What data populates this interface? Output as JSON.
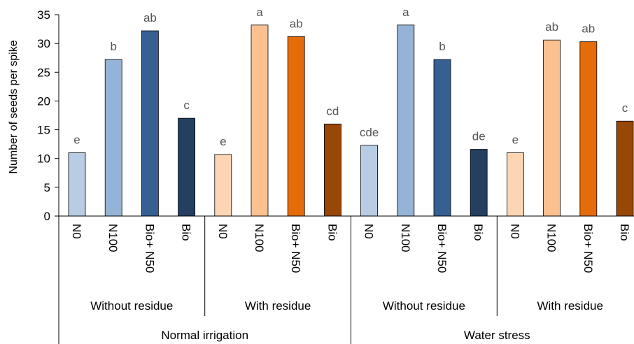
{
  "chart_data": {
    "type": "bar",
    "title": "",
    "ylabel": "Number of seeds per spike",
    "xlabel": "",
    "ylim": [
      0,
      35
    ],
    "yticks": [
      0,
      5,
      10,
      15,
      20,
      25,
      30,
      35
    ],
    "grid": false,
    "legend": "none",
    "bars": [
      {
        "label": "N0",
        "value": 11.0,
        "letter": "e",
        "color": "#b8cce4"
      },
      {
        "label": "N100",
        "value": 27.2,
        "letter": "b",
        "color": "#95b3d7"
      },
      {
        "label": "Bio+ N50",
        "value": 32.2,
        "letter": "ab",
        "color": "#366092"
      },
      {
        "label": "Bio",
        "value": 17.0,
        "letter": "c",
        "color": "#243f60"
      },
      {
        "label": "N0",
        "value": 10.7,
        "letter": "e",
        "color": "#fcd5b4"
      },
      {
        "label": "N100",
        "value": 33.2,
        "letter": "a",
        "color": "#fac090"
      },
      {
        "label": "Bio+ N50",
        "value": 31.2,
        "letter": "ab",
        "color": "#e46c0a"
      },
      {
        "label": "Bio",
        "value": 16.0,
        "letter": "cd",
        "color": "#974706"
      },
      {
        "label": "N0",
        "value": 12.3,
        "letter": "cde",
        "color": "#b8cce4"
      },
      {
        "label": "N100",
        "value": 33.2,
        "letter": "a",
        "color": "#95b3d7"
      },
      {
        "label": "Bio+ N50",
        "value": 27.2,
        "letter": "b",
        "color": "#366092"
      },
      {
        "label": "Bio",
        "value": 11.6,
        "letter": "de",
        "color": "#243f60"
      },
      {
        "label": "N0",
        "value": 11.0,
        "letter": "e",
        "color": "#fcd5b4"
      },
      {
        "label": "N100",
        "value": 30.6,
        "letter": "ab",
        "color": "#fac090"
      },
      {
        "label": "Bio+ N50",
        "value": 30.3,
        "letter": "ab",
        "color": "#e46c0a"
      },
      {
        "label": "Bio",
        "value": 16.5,
        "letter": "c",
        "color": "#974706"
      }
    ],
    "subgroups": [
      "Without residue",
      "With residue",
      "Without residue",
      "With residue"
    ],
    "groups": [
      "Normal irrigation",
      "Water stress"
    ]
  }
}
